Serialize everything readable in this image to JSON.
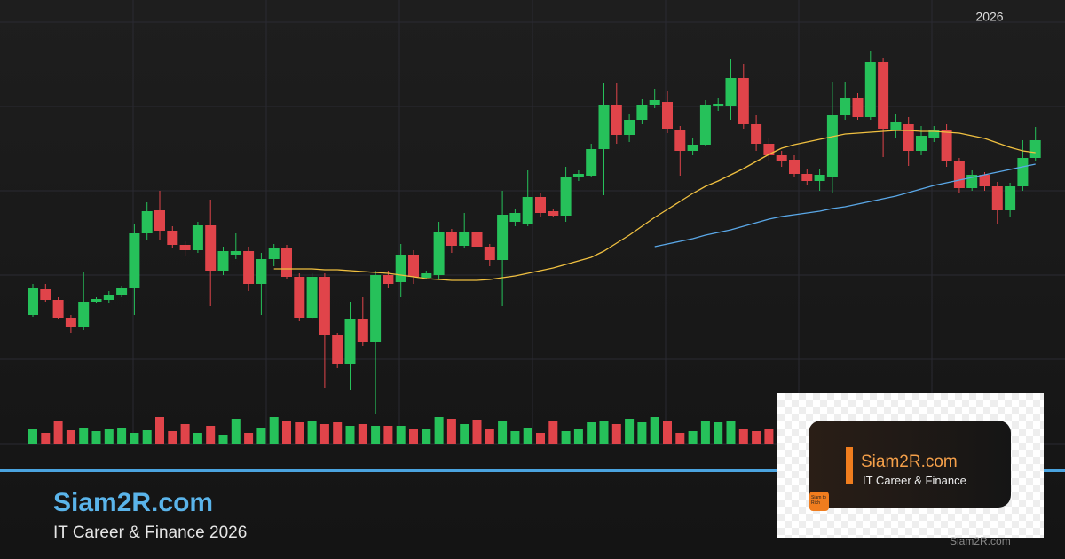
{
  "chart_data": {
    "type": "candlestick",
    "year_label": "2026",
    "up_color": "#26c15a",
    "down_color": "#e0444a",
    "ylim": [
      20,
      480
    ],
    "volume_lim": [
      0,
      100
    ],
    "open": [
      145,
      174,
      162,
      142,
      132,
      160,
      162,
      168,
      175,
      237,
      263,
      240,
      224,
      218,
      246,
      195,
      213,
      217,
      180,
      208,
      220,
      188,
      142,
      188,
      122,
      90,
      140,
      115,
      190,
      182,
      213,
      187,
      190,
      238,
      223,
      238,
      222,
      207,
      250,
      248,
      278,
      262,
      257,
      300,
      302,
      332,
      382,
      348,
      365,
      382,
      385,
      353,
      330,
      337,
      380,
      380,
      412,
      360,
      338,
      325,
      320,
      304,
      296,
      300,
      370,
      390,
      368,
      430,
      354,
      360,
      330,
      345,
      353,
      318,
      288,
      303,
      290,
      263,
      290,
      322
    ],
    "high": [
      180,
      180,
      165,
      145,
      193,
      165,
      172,
      178,
      247,
      272,
      285,
      245,
      228,
      250,
      275,
      222,
      237,
      222,
      215,
      225,
      224,
      192,
      192,
      192,
      125,
      160,
      165,
      195,
      195,
      225,
      218,
      195,
      250,
      242,
      260,
      242,
      225,
      285,
      265,
      308,
      282,
      265,
      312,
      308,
      338,
      407,
      407,
      372,
      388,
      400,
      398,
      358,
      345,
      387,
      390,
      433,
      428,
      370,
      345,
      330,
      325,
      310,
      310,
      408,
      408,
      395,
      443,
      435,
      372,
      368,
      358,
      358,
      360,
      322,
      308,
      306,
      295,
      294,
      342,
      357
    ],
    "low": [
      143,
      160,
      140,
      125,
      128,
      158,
      158,
      165,
      145,
      230,
      230,
      220,
      212,
      215,
      155,
      190,
      208,
      172,
      145,
      200,
      185,
      138,
      140,
      63,
      85,
      60,
      110,
      33,
      175,
      165,
      180,
      185,
      185,
      215,
      220,
      215,
      200,
      155,
      245,
      245,
      255,
      255,
      250,
      296,
      300,
      280,
      338,
      340,
      360,
      378,
      350,
      302,
      325,
      335,
      375,
      365,
      355,
      330,
      318,
      312,
      300,
      292,
      285,
      282,
      365,
      365,
      365,
      323,
      345,
      313,
      325,
      340,
      312,
      282,
      285,
      285,
      247,
      255,
      285,
      318
    ],
    "close": [
      175,
      162,
      142,
      132,
      160,
      163,
      168,
      175,
      237,
      262,
      240,
      224,
      218,
      246,
      195,
      217,
      217,
      180,
      208,
      220,
      188,
      142,
      188,
      122,
      90,
      140,
      115,
      190,
      180,
      213,
      188,
      192,
      238,
      223,
      238,
      222,
      207,
      258,
      260,
      278,
      260,
      257,
      300,
      304,
      332,
      382,
      348,
      365,
      382,
      387,
      355,
      330,
      337,
      382,
      383,
      412,
      360,
      338,
      325,
      318,
      304,
      296,
      303,
      370,
      390,
      368,
      430,
      355,
      362,
      330,
      347,
      353,
      318,
      288,
      303,
      290,
      263,
      290,
      322,
      342
    ],
    "volume": [
      16,
      12,
      25,
      15,
      18,
      14,
      16,
      18,
      12,
      15,
      30,
      14,
      22,
      12,
      20,
      10,
      28,
      12,
      18,
      30,
      26,
      24,
      26,
      22,
      24,
      20,
      22,
      20,
      20,
      20,
      16,
      17,
      30,
      28,
      22,
      27,
      16,
      26,
      14,
      18,
      12,
      26,
      14,
      16,
      24,
      26,
      22,
      28,
      24,
      30,
      26,
      12,
      14,
      26,
      24,
      26,
      16,
      14,
      16,
      18,
      14,
      20,
      18,
      22,
      24,
      20,
      22,
      26,
      18,
      20,
      16,
      18,
      20,
      22,
      16,
      18,
      20,
      14,
      18,
      20
    ],
    "lines": [
      {
        "color": "#f0c040",
        "values": [
          null,
          null,
          null,
          null,
          null,
          null,
          null,
          null,
          null,
          null,
          null,
          null,
          null,
          null,
          null,
          null,
          null,
          null,
          null,
          197,
          197,
          197,
          197,
          196,
          196,
          195,
          194,
          193,
          192,
          190,
          188,
          186,
          185,
          184,
          184,
          184,
          185,
          187,
          189,
          192,
          195,
          198,
          202,
          206,
          210,
          217,
          226,
          235,
          245,
          255,
          264,
          273,
          282,
          290,
          296,
          303,
          310,
          318,
          326,
          333,
          337,
          340,
          343,
          346,
          349,
          350,
          351,
          352,
          353,
          353,
          352,
          352,
          351,
          350,
          347,
          344,
          339,
          334,
          330,
          328
        ]
      },
      {
        "color": "#5aa8e8",
        "values": [
          null,
          null,
          null,
          null,
          null,
          null,
          null,
          null,
          null,
          null,
          null,
          null,
          null,
          null,
          null,
          null,
          null,
          null,
          null,
          null,
          null,
          null,
          null,
          null,
          null,
          null,
          null,
          null,
          null,
          null,
          null,
          null,
          null,
          null,
          null,
          null,
          null,
          null,
          null,
          null,
          null,
          null,
          null,
          null,
          null,
          null,
          null,
          null,
          null,
          222,
          225,
          228,
          231,
          235,
          238,
          241,
          245,
          249,
          253,
          256,
          258,
          260,
          262,
          265,
          267,
          270,
          273,
          276,
          279,
          283,
          287,
          291,
          294,
          297,
          300,
          303,
          306,
          309,
          312,
          315
        ]
      }
    ]
  },
  "banner": {
    "brand": "Siam2R.com",
    "tagline": "IT Career & Finance 2026",
    "watermark": "Siam2R.com"
  },
  "logo": {
    "brand": "Siam2R.com",
    "tagline": "IT Career & Finance",
    "badge": "Siam to Rich"
  }
}
